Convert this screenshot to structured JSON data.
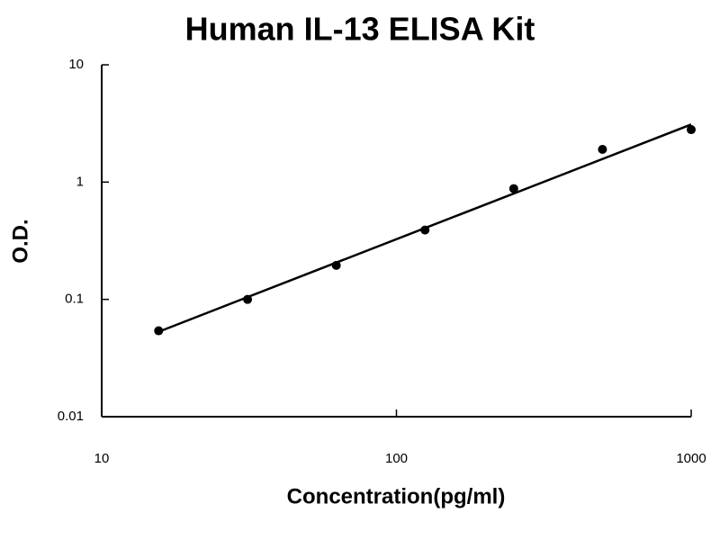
{
  "chart_data": {
    "type": "scatter",
    "title": "Human IL-13 ELISA Kit",
    "x_label": "Concentration(pg/ml)",
    "y_label": "O.D.",
    "x": [
      15.6,
      31.25,
      62.5,
      125,
      250,
      500,
      1000
    ],
    "series": [
      {
        "type": "scatter",
        "color": "#000000",
        "values": [
          0.054,
          0.1,
          0.195,
          0.39,
          0.88,
          1.9,
          2.8
        ]
      },
      {
        "type": "line",
        "color": "#000000",
        "x": [
          15.6,
          1000
        ],
        "values": [
          0.053,
          3.1
        ]
      }
    ],
    "xscale": "log",
    "yscale": "log",
    "xlim": [
      10,
      1000
    ],
    "ylim": [
      0.01,
      10
    ],
    "xticks": [
      10,
      100,
      1000
    ],
    "yticks": [
      0.01,
      0.1,
      1,
      10
    ],
    "grid": false
  }
}
